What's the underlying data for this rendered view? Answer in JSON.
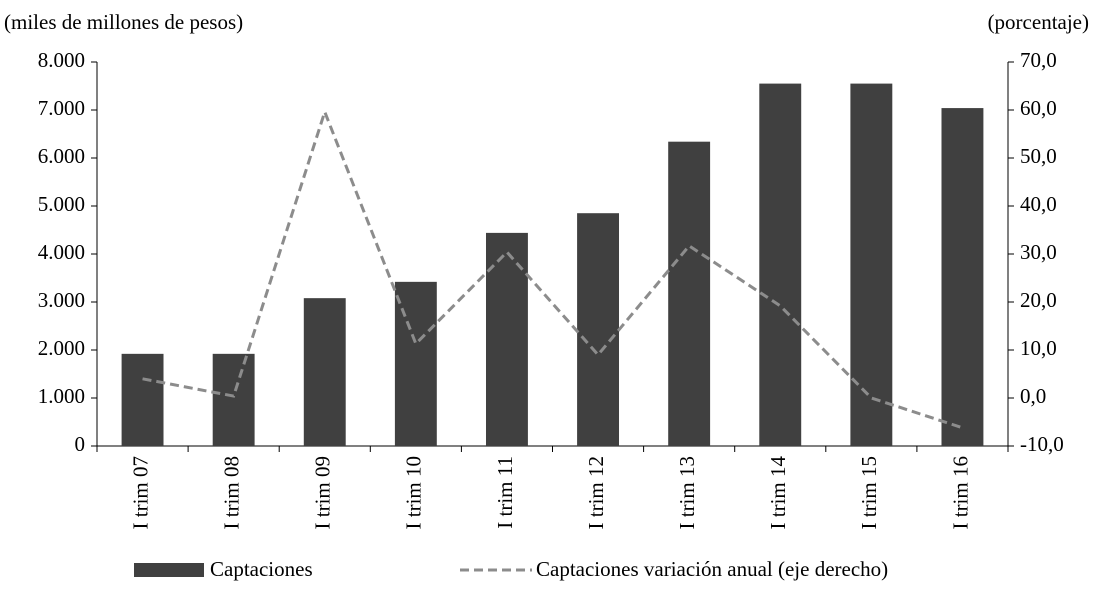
{
  "chart_data": {
    "type": "bar",
    "y_label": "(miles de millones de pesos)",
    "y2_label": "(porcentaje)",
    "categories": [
      "I trim 07",
      "I trim 08",
      "I trim 09",
      "I trim 10",
      "I trim 11",
      "I trim 12",
      "I trim 13",
      "I trim 14",
      "I trim 15",
      "I trim 16"
    ],
    "series": [
      {
        "name": "Captaciones",
        "type": "bar",
        "color": "#404040",
        "axis": "y",
        "values": [
          1920,
          1920,
          3080,
          3420,
          4440,
          4850,
          6340,
          7550,
          7550,
          7040
        ]
      },
      {
        "name": "Captaciones variación anual (eje derecho)",
        "type": "line",
        "color": "#8c8c8c",
        "axis": "y2",
        "dashed": true,
        "values": [
          4.0,
          0.4,
          59.6,
          11.3,
          30.4,
          9.0,
          31.7,
          19.2,
          0.0,
          -6.2
        ]
      }
    ],
    "ylim": [
      0,
      8000
    ],
    "yticks": [
      0,
      {
        "value": 1000,
        "label": "1.000"
      },
      {
        "value": 2000,
        "label": "2.000"
      },
      {
        "value": 3000,
        "label": "3.000"
      },
      {
        "value": 4000,
        "label": "4.000"
      },
      {
        "value": 5000,
        "label": "5.000"
      },
      {
        "value": 6000,
        "label": "6.000"
      },
      {
        "value": 7000,
        "label": "7.000"
      },
      {
        "value": 8000,
        "label": "8.000"
      }
    ],
    "y2lim": [
      -10,
      70
    ],
    "y2ticks": [
      {
        "value": -10,
        "label": "-10,0"
      },
      {
        "value": 0,
        "label": "0,0"
      },
      {
        "value": 10,
        "label": "10,0"
      },
      {
        "value": 20,
        "label": "20,0"
      },
      {
        "value": 30,
        "label": "30,0"
      },
      {
        "value": 40,
        "label": "40,0"
      },
      {
        "value": 50,
        "label": "50,0"
      },
      {
        "value": 60,
        "label": "60,0"
      },
      {
        "value": 70,
        "label": "70,0"
      }
    ],
    "grid": false,
    "legend": "bottom"
  }
}
